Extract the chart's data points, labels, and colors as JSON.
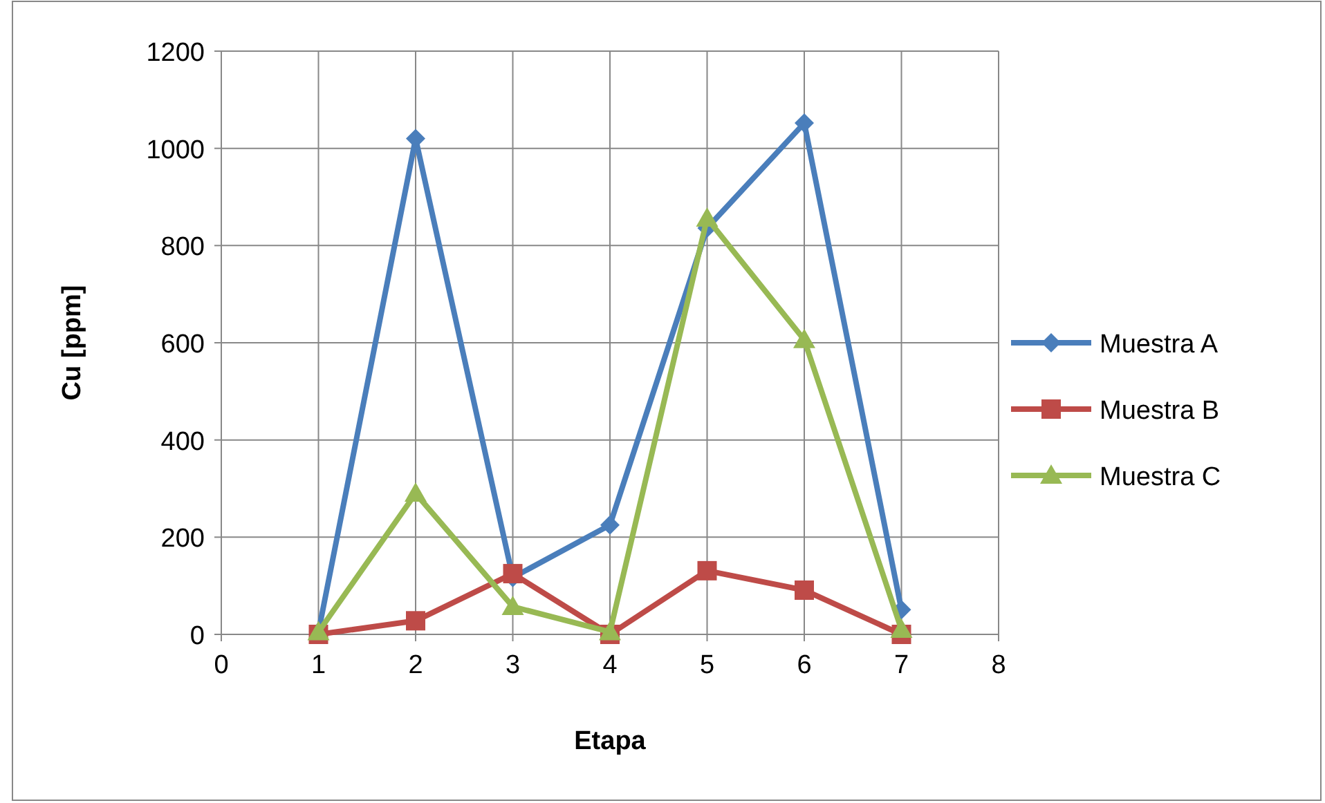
{
  "chart_data": {
    "type": "line",
    "xlabel": "Etapa",
    "ylabel": "Cu [ppm]",
    "x": [
      1,
      2,
      3,
      4,
      5,
      6,
      7
    ],
    "xlim": [
      0,
      8
    ],
    "xticks": [
      0,
      1,
      2,
      3,
      4,
      5,
      6,
      7,
      8
    ],
    "ylim": [
      0,
      1200
    ],
    "yticks": [
      0,
      200,
      400,
      600,
      800,
      1000,
      1200
    ],
    "grid": true,
    "legend": "right",
    "series": [
      {
        "name": "Muestra A",
        "color": "#4a7ebb",
        "marker": "diamond",
        "values": [
          5,
          1020,
          117,
          225,
          836,
          1052,
          51
        ]
      },
      {
        "name": "Muestra B",
        "color": "#be4b48",
        "marker": "square",
        "values": [
          0,
          28,
          125,
          0,
          131,
          91,
          0
        ]
      },
      {
        "name": "Muestra C",
        "color": "#98b954",
        "marker": "triangle",
        "values": [
          5,
          290,
          57,
          5,
          856,
          606,
          10
        ]
      }
    ]
  }
}
